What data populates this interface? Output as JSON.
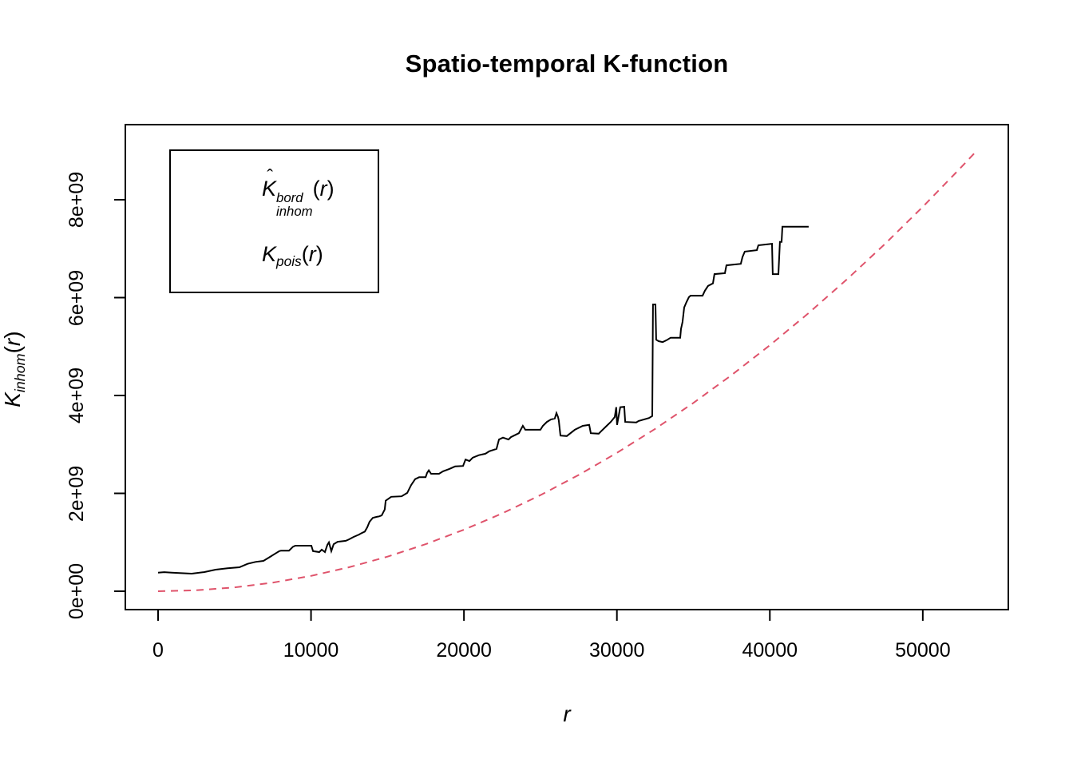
{
  "chart_data": {
    "type": "line",
    "title": "Spatio-temporal K-function",
    "xlabel": "r",
    "ylabel_parts": {
      "base": "K",
      "sub": "inhom",
      "open": "(",
      "var": "r",
      "close": ")"
    },
    "x_axis": {
      "ticks": [
        0,
        10000,
        20000,
        30000,
        40000,
        50000
      ],
      "tick_labels": [
        "0",
        "10000",
        "20000",
        "30000",
        "40000",
        "50000"
      ],
      "range": [
        -2000,
        55600
      ]
    },
    "y_axis": {
      "ticks_in_billions": [
        0,
        2,
        4,
        6,
        8
      ],
      "tick_labels": [
        "0e+00",
        "2e+09",
        "4e+09",
        "6e+09",
        "8e+09"
      ],
      "range_in_billions": [
        -0.4,
        9.6
      ]
    },
    "grid": false,
    "legend_position": "top-left-inside",
    "values_unit": "1e9",
    "series": [
      {
        "name": "Khat_inhom_bord_empirical",
        "color": "#000000",
        "style": "solid",
        "points": [
          [
            0,
            0.38
          ],
          [
            400,
            0.39
          ],
          [
            900,
            0.38
          ],
          [
            2200,
            0.36
          ],
          [
            3000,
            0.39
          ],
          [
            3760,
            0.44
          ],
          [
            4540,
            0.47
          ],
          [
            5320,
            0.49
          ],
          [
            5850,
            0.56
          ],
          [
            6370,
            0.6
          ],
          [
            6890,
            0.62
          ],
          [
            7310,
            0.7
          ],
          [
            7670,
            0.77
          ],
          [
            7930,
            0.82
          ],
          [
            8040,
            0.83
          ],
          [
            8560,
            0.83
          ],
          [
            8820,
            0.91
          ],
          [
            8980,
            0.93
          ],
          [
            10020,
            0.93
          ],
          [
            10130,
            0.82
          ],
          [
            10540,
            0.8
          ],
          [
            10700,
            0.85
          ],
          [
            10910,
            0.8
          ],
          [
            11070,
            0.95
          ],
          [
            11170,
            1.0
          ],
          [
            11330,
            0.82
          ],
          [
            11480,
            0.96
          ],
          [
            11740,
            1.01
          ],
          [
            12270,
            1.03
          ],
          [
            12480,
            1.06
          ],
          [
            12790,
            1.11
          ],
          [
            13150,
            1.16
          ],
          [
            13260,
            1.18
          ],
          [
            13520,
            1.22
          ],
          [
            13680,
            1.31
          ],
          [
            13830,
            1.42
          ],
          [
            14040,
            1.5
          ],
          [
            14300,
            1.52
          ],
          [
            14460,
            1.53
          ],
          [
            14620,
            1.55
          ],
          [
            14820,
            1.67
          ],
          [
            14880,
            1.85
          ],
          [
            15240,
            1.93
          ],
          [
            15920,
            1.94
          ],
          [
            16290,
            2.01
          ],
          [
            16550,
            2.17
          ],
          [
            16810,
            2.29
          ],
          [
            17070,
            2.33
          ],
          [
            17490,
            2.33
          ],
          [
            17590,
            2.42
          ],
          [
            17700,
            2.47
          ],
          [
            17850,
            2.4
          ],
          [
            18370,
            2.4
          ],
          [
            18630,
            2.45
          ],
          [
            19050,
            2.5
          ],
          [
            19420,
            2.55
          ],
          [
            19940,
            2.56
          ],
          [
            20100,
            2.69
          ],
          [
            20360,
            2.66
          ],
          [
            20570,
            2.73
          ],
          [
            20980,
            2.78
          ],
          [
            21400,
            2.81
          ],
          [
            21660,
            2.86
          ],
          [
            22130,
            2.91
          ],
          [
            22290,
            3.1
          ],
          [
            22550,
            3.14
          ],
          [
            22910,
            3.1
          ],
          [
            23070,
            3.15
          ],
          [
            23590,
            3.23
          ],
          [
            23850,
            3.38
          ],
          [
            24010,
            3.3
          ],
          [
            25000,
            3.3
          ],
          [
            25160,
            3.38
          ],
          [
            25420,
            3.46
          ],
          [
            25680,
            3.51
          ],
          [
            25940,
            3.53
          ],
          [
            26050,
            3.64
          ],
          [
            26150,
            3.56
          ],
          [
            26200,
            3.49
          ],
          [
            26310,
            3.18
          ],
          [
            26720,
            3.17
          ],
          [
            27250,
            3.3
          ],
          [
            27770,
            3.38
          ],
          [
            28190,
            3.4
          ],
          [
            28290,
            3.23
          ],
          [
            28810,
            3.22
          ],
          [
            28970,
            3.27
          ],
          [
            29330,
            3.38
          ],
          [
            29600,
            3.46
          ],
          [
            29860,
            3.56
          ],
          [
            29960,
            3.76
          ],
          [
            30010,
            3.4
          ],
          [
            30220,
            3.76
          ],
          [
            30480,
            3.77
          ],
          [
            30540,
            3.46
          ],
          [
            31270,
            3.45
          ],
          [
            31420,
            3.48
          ],
          [
            32100,
            3.54
          ],
          [
            32310,
            3.58
          ],
          [
            32360,
            5.86
          ],
          [
            32520,
            5.86
          ],
          [
            32570,
            5.14
          ],
          [
            32730,
            5.11
          ],
          [
            32990,
            5.09
          ],
          [
            33250,
            5.13
          ],
          [
            33510,
            5.18
          ],
          [
            34140,
            5.18
          ],
          [
            34190,
            5.36
          ],
          [
            34290,
            5.5
          ],
          [
            34400,
            5.8
          ],
          [
            34550,
            5.91
          ],
          [
            34710,
            6.01
          ],
          [
            34810,
            6.04
          ],
          [
            35600,
            6.04
          ],
          [
            35750,
            6.14
          ],
          [
            35960,
            6.24
          ],
          [
            36280,
            6.29
          ],
          [
            36380,
            6.48
          ],
          [
            37060,
            6.5
          ],
          [
            37160,
            6.66
          ],
          [
            38100,
            6.69
          ],
          [
            38210,
            6.83
          ],
          [
            38360,
            6.94
          ],
          [
            39150,
            6.97
          ],
          [
            39250,
            7.07
          ],
          [
            40140,
            7.1
          ],
          [
            40190,
            6.48
          ],
          [
            40560,
            6.48
          ],
          [
            40660,
            7.14
          ],
          [
            40770,
            7.14
          ],
          [
            40820,
            7.45
          ],
          [
            42540,
            7.45
          ]
        ]
      },
      {
        "name": "K_pois_theoretical",
        "color": "#DF536B",
        "style": "dashed",
        "points": [
          [
            0,
            0
          ],
          [
            2500,
            0.0196
          ],
          [
            5000,
            0.0785
          ],
          [
            7500,
            0.1767
          ],
          [
            10000,
            0.3142
          ],
          [
            12500,
            0.4909
          ],
          [
            15000,
            0.7069
          ],
          [
            17500,
            0.9621
          ],
          [
            20000,
            1.2566
          ],
          [
            22500,
            1.5904
          ],
          [
            25000,
            1.9635
          ],
          [
            27500,
            2.3758
          ],
          [
            30000,
            2.8274
          ],
          [
            32500,
            3.3183
          ],
          [
            35000,
            3.8485
          ],
          [
            37500,
            4.4179
          ],
          [
            40000,
            5.0265
          ],
          [
            42500,
            5.6745
          ],
          [
            45000,
            6.3617
          ],
          [
            47500,
            7.0882
          ],
          [
            50000,
            7.854
          ],
          [
            52500,
            8.659
          ],
          [
            53500,
            8.992
          ]
        ]
      }
    ],
    "legend": {
      "items": [
        {
          "sample": "solid-black-line",
          "label": {
            "hat": "ˆ",
            "base": "K",
            "sup": "bord",
            "sub": "inhom",
            "open": "(",
            "var": "r",
            "close": ")"
          }
        },
        {
          "sample": "dashed-pink-line",
          "label": {
            "base": "K",
            "sub": "pois",
            "open": "(",
            "var": "r",
            "close": ")"
          }
        }
      ]
    }
  }
}
